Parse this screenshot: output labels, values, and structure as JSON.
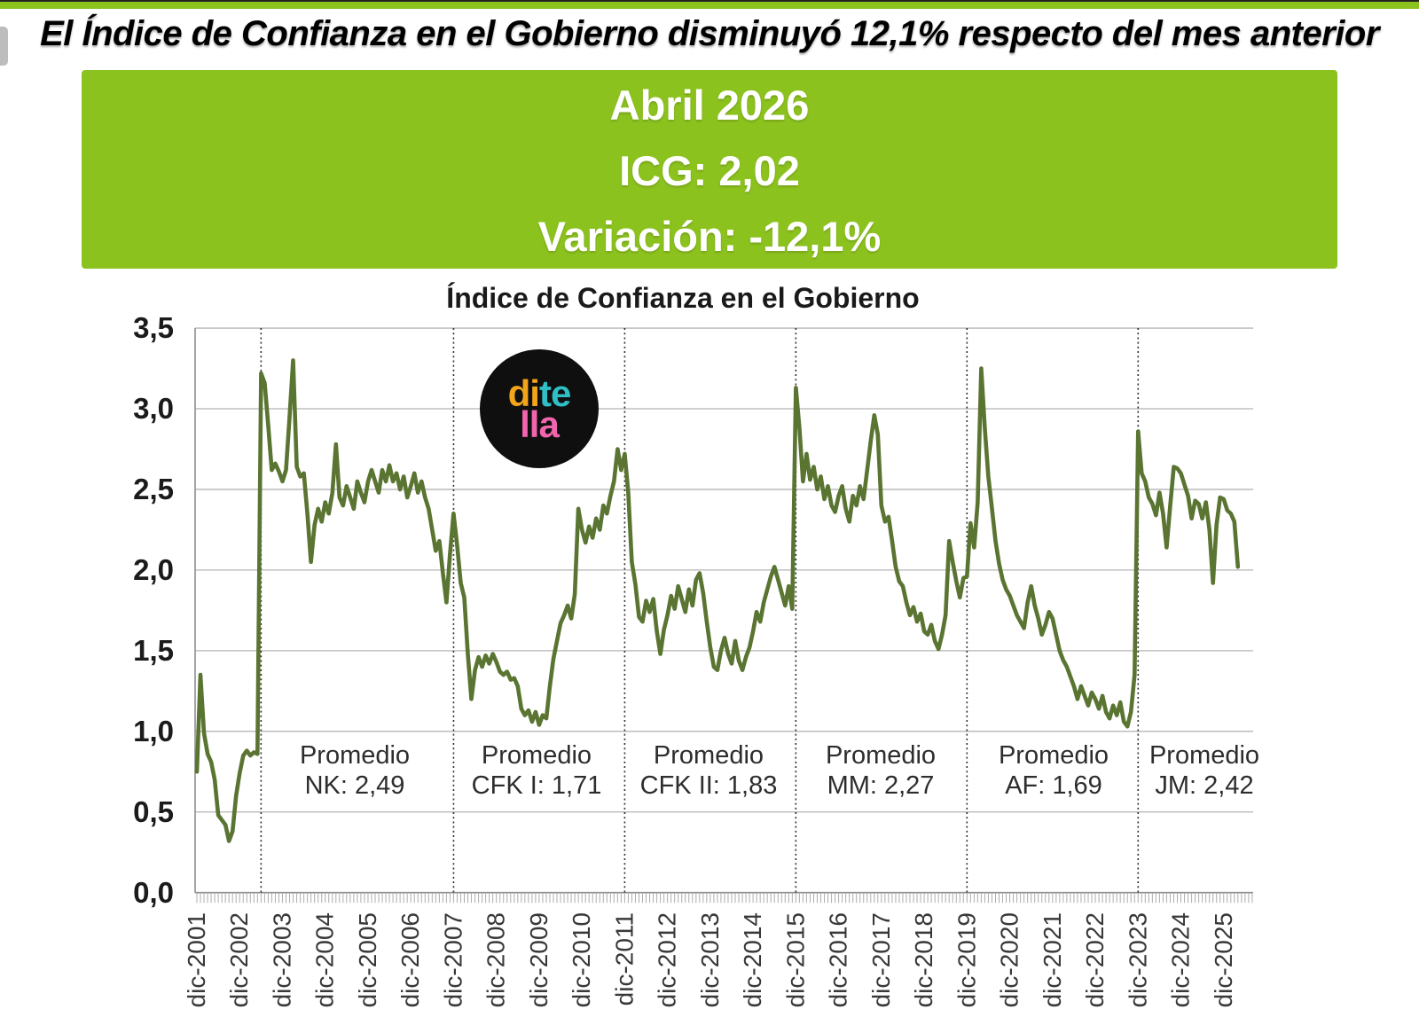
{
  "page": {
    "headline": "El Índice de Confianza en el Gobierno disminuyó 12,1% respecto del mes anterior"
  },
  "banner": {
    "line1": "Abril 2026",
    "line2": "ICG: 2,02",
    "line3": "Variación: -12,1%",
    "bg_color": "#8CC21E",
    "text_color": "#FFFFFF"
  },
  "logo": {
    "part1": "di",
    "part2": "te",
    "part3": "lla",
    "part1_color": "#F2A51B",
    "part2_color": "#2FBFC4",
    "part3_color": "#F164AE",
    "bg_color": "#0F0F0F"
  },
  "chart_data": {
    "type": "line",
    "title": "Índice de Confianza en el Gobierno",
    "series_name": "ICG",
    "line_color": "#5A7431",
    "frequency": "monthly",
    "x_start": "dic-2001",
    "x_end": "abr-2026",
    "ylim": [
      0,
      3.5
    ],
    "grid": true,
    "y_tick_labels": [
      "0,0",
      "0,5",
      "1,0",
      "1,5",
      "2,0",
      "2,5",
      "3,0",
      "3,5"
    ],
    "x_tick_labels": [
      "dic-2001",
      "dic-2002",
      "dic-2003",
      "dic-2004",
      "dic-2005",
      "dic-2006",
      "dic-2007",
      "dic-2008",
      "dic-2009",
      "dic-2010",
      "dic-2011",
      "dic-2012",
      "dic-2013",
      "dic-2014",
      "dic-2015",
      "dic-2016",
      "dic-2017",
      "dic-2018",
      "dic-2019",
      "dic-2020",
      "dic-2021",
      "dic-2022",
      "dic-2023",
      "dic-2024",
      "dic-2025"
    ],
    "divider_month_index": [
      18,
      72,
      120,
      168,
      216,
      264
    ],
    "periods": [
      {
        "line1": "Promedio",
        "line2": "NK: 2,49",
        "president": "NK",
        "average": 2.49
      },
      {
        "line1": "Promedio",
        "line2": "CFK I: 1,71",
        "president": "CFK I",
        "average": 1.71
      },
      {
        "line1": "Promedio",
        "line2": "CFK II: 1,83",
        "president": "CFK II",
        "average": 1.83
      },
      {
        "line1": "Promedio",
        "line2": "MM: 2,27",
        "president": "MM",
        "average": 2.27
      },
      {
        "line1": "Promedio",
        "line2": "AF: 1,69",
        "president": "AF",
        "average": 1.69
      },
      {
        "line1": "Promedio",
        "line2": "JM: 2,42",
        "president": "JM",
        "average": 2.42
      }
    ],
    "latest": {
      "month": "Abril 2026",
      "icg": "2,02",
      "variation": "-12,1%"
    },
    "values": [
      0.75,
      1.35,
      0.99,
      0.86,
      0.81,
      0.7,
      0.48,
      0.45,
      0.42,
      0.32,
      0.38,
      0.6,
      0.74,
      0.85,
      0.88,
      0.85,
      0.87,
      0.86,
      3.22,
      3.16,
      2.9,
      2.62,
      2.66,
      2.61,
      2.55,
      2.62,
      2.95,
      3.3,
      2.64,
      2.58,
      2.6,
      2.35,
      2.05,
      2.28,
      2.38,
      2.3,
      2.42,
      2.35,
      2.48,
      2.78,
      2.45,
      2.4,
      2.52,
      2.45,
      2.38,
      2.55,
      2.48,
      2.42,
      2.55,
      2.62,
      2.55,
      2.48,
      2.62,
      2.55,
      2.65,
      2.55,
      2.6,
      2.5,
      2.58,
      2.45,
      2.52,
      2.6,
      2.48,
      2.55,
      2.45,
      2.38,
      2.25,
      2.12,
      2.18,
      1.98,
      1.8,
      2.1,
      2.35,
      2.15,
      1.92,
      1.83,
      1.48,
      1.2,
      1.38,
      1.46,
      1.4,
      1.47,
      1.42,
      1.48,
      1.43,
      1.37,
      1.35,
      1.37,
      1.32,
      1.33,
      1.28,
      1.14,
      1.1,
      1.13,
      1.06,
      1.12,
      1.04,
      1.1,
      1.08,
      1.28,
      1.45,
      1.56,
      1.67,
      1.72,
      1.78,
      1.7,
      1.85,
      2.38,
      2.25,
      2.17,
      2.27,
      2.2,
      2.32,
      2.25,
      2.4,
      2.35,
      2.46,
      2.55,
      2.75,
      2.62,
      2.72,
      2.48,
      2.05,
      1.91,
      1.71,
      1.68,
      1.81,
      1.74,
      1.82,
      1.62,
      1.48,
      1.63,
      1.72,
      1.84,
      1.76,
      1.9,
      1.82,
      1.74,
      1.88,
      1.78,
      1.94,
      1.98,
      1.86,
      1.68,
      1.52,
      1.4,
      1.38,
      1.5,
      1.58,
      1.48,
      1.42,
      1.56,
      1.44,
      1.38,
      1.46,
      1.52,
      1.62,
      1.74,
      1.68,
      1.8,
      1.88,
      1.96,
      2.02,
      1.94,
      1.86,
      1.78,
      1.9,
      1.76,
      3.13,
      2.88,
      2.55,
      2.72,
      2.56,
      2.64,
      2.5,
      2.58,
      2.44,
      2.52,
      2.4,
      2.36,
      2.46,
      2.52,
      2.38,
      2.3,
      2.46,
      2.4,
      2.52,
      2.44,
      2.62,
      2.8,
      2.96,
      2.84,
      2.4,
      2.3,
      2.33,
      2.18,
      2.02,
      1.93,
      1.9,
      1.8,
      1.72,
      1.77,
      1.68,
      1.73,
      1.62,
      1.6,
      1.66,
      1.56,
      1.51,
      1.6,
      1.72,
      2.18,
      2.05,
      1.93,
      1.83,
      1.95,
      1.96,
      2.29,
      2.14,
      2.42,
      3.25,
      2.88,
      2.58,
      2.38,
      2.18,
      2.04,
      1.94,
      1.88,
      1.84,
      1.78,
      1.72,
      1.68,
      1.64,
      1.8,
      1.9,
      1.78,
      1.7,
      1.6,
      1.66,
      1.74,
      1.7,
      1.6,
      1.5,
      1.44,
      1.4,
      1.34,
      1.28,
      1.2,
      1.28,
      1.22,
      1.16,
      1.24,
      1.2,
      1.14,
      1.22,
      1.12,
      1.08,
      1.16,
      1.1,
      1.18,
      1.06,
      1.03,
      1.12,
      1.35,
      2.86,
      2.6,
      2.55,
      2.45,
      2.41,
      2.34,
      2.48,
      2.35,
      2.14,
      2.4,
      2.64,
      2.63,
      2.6,
      2.53,
      2.46,
      2.32,
      2.43,
      2.41,
      2.32,
      2.42,
      2.25,
      1.92,
      2.28,
      2.45,
      2.44,
      2.37,
      2.35,
      2.3,
      2.02
    ]
  }
}
